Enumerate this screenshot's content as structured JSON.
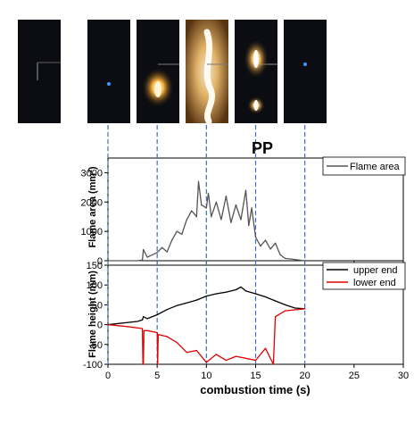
{
  "photos": {
    "times_s": [
      0,
      5,
      10,
      15,
      20
    ],
    "frames": [
      {
        "flame": "none"
      },
      {
        "flame": "blue-dot"
      },
      {
        "flame": "small"
      },
      {
        "flame": "large"
      },
      {
        "flame": "medium"
      },
      {
        "flame": "blue-dot"
      }
    ]
  },
  "chart_data": [
    {
      "type": "line",
      "material_label": "PP",
      "ylabel": "Flame area (mm²)",
      "ylim": [
        0,
        3500
      ],
      "yticks": [
        "0",
        "1000",
        "2000",
        "3000"
      ],
      "xlim": [
        0,
        30
      ],
      "series": [
        {
          "name": "Flame area",
          "color": "#555555",
          "x": [
            0,
            3,
            3.5,
            3.6,
            4,
            5,
            5.5,
            6,
            6.5,
            7,
            7.5,
            8,
            8.5,
            9,
            9.2,
            9.5,
            10,
            10.2,
            10.5,
            11,
            11.5,
            12,
            12.5,
            13,
            13.5,
            14,
            14.3,
            14.6,
            15,
            15.5,
            16,
            16.5,
            17,
            17.5,
            18,
            20
          ],
          "y": [
            0,
            0,
            20,
            380,
            120,
            280,
            450,
            300,
            700,
            1000,
            900,
            1400,
            1700,
            1500,
            2700,
            1900,
            1800,
            2300,
            1500,
            2000,
            1400,
            2200,
            1300,
            1900,
            1400,
            2400,
            1200,
            1800,
            800,
            500,
            700,
            400,
            600,
            200,
            80,
            0
          ]
        }
      ],
      "legend": "top-right"
    },
    {
      "type": "line",
      "xlabel": "combustion time (s)",
      "ylabel": "Flame height (mm)",
      "xlim": [
        0,
        30
      ],
      "ylim": [
        -100,
        150
      ],
      "xticks": [
        "0",
        "5",
        "10",
        "15",
        "20",
        "25",
        "30"
      ],
      "yticks": [
        "-100",
        "-50",
        "0",
        "50",
        "100",
        "150"
      ],
      "series": [
        {
          "name": "upper end",
          "color": "#000000",
          "x": [
            0,
            3,
            3.5,
            3.6,
            4,
            5,
            6,
            7,
            8,
            9,
            10,
            11,
            12,
            13,
            13.5,
            14,
            15,
            16,
            17,
            18,
            19,
            20
          ],
          "y": [
            0,
            8,
            12,
            20,
            15,
            25,
            38,
            48,
            55,
            62,
            72,
            78,
            82,
            88,
            95,
            85,
            78,
            70,
            60,
            50,
            42,
            40
          ]
        },
        {
          "name": "lower end",
          "color": "#e00000",
          "x": [
            0,
            2,
            3.5,
            3.55,
            3.6,
            3.65,
            4,
            5,
            5.05,
            5.1,
            6,
            7,
            8,
            9,
            10,
            11,
            12,
            13,
            14,
            15,
            16,
            16.8,
            17,
            18,
            20
          ],
          "y": [
            0,
            -5,
            -10,
            -100,
            -100,
            -15,
            -15,
            -20,
            -100,
            -25,
            -30,
            -45,
            -70,
            -65,
            -95,
            -75,
            -90,
            -80,
            -85,
            -90,
            -60,
            -100,
            20,
            35,
            40
          ]
        }
      ],
      "legend": "top-right"
    }
  ]
}
